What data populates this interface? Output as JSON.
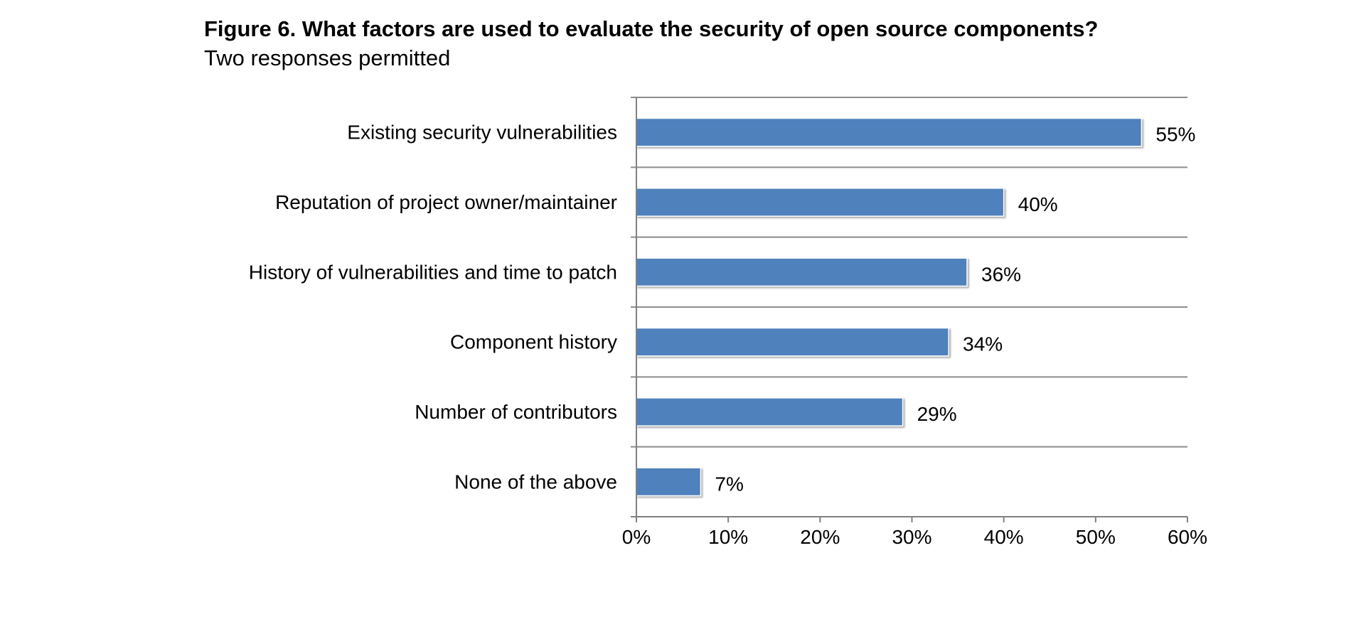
{
  "figure": {
    "title": "Figure 6. What factors are used to evaluate the security of open source components?",
    "subtitle": "Two responses permitted"
  },
  "colors": {
    "bar": "#4f81bd",
    "grid": "#8c8c8c",
    "axis": "#808080"
  },
  "chart_data": {
    "type": "bar",
    "orientation": "horizontal",
    "title": "Figure 6. What factors are used to evaluate the security of open source components?",
    "subtitle": "Two responses permitted",
    "categories": [
      "Existing security vulnerabilities",
      "Reputation of project owner/maintainer",
      "History of vulnerabilities and time to patch",
      "Component history",
      "Number of contributors",
      "None of the above"
    ],
    "values": [
      55,
      40,
      36,
      34,
      29,
      7
    ],
    "data_labels": [
      "55%",
      "40%",
      "36%",
      "34%",
      "29%",
      "7%"
    ],
    "xlim": [
      0,
      60
    ],
    "x_ticks": [
      0,
      10,
      20,
      30,
      40,
      50,
      60
    ],
    "x_tick_labels": [
      "0%",
      "10%",
      "20%",
      "30%",
      "40%",
      "50%",
      "60%"
    ],
    "xlabel": "",
    "ylabel": "",
    "grid": "horizontal category separators",
    "legend": "none"
  }
}
